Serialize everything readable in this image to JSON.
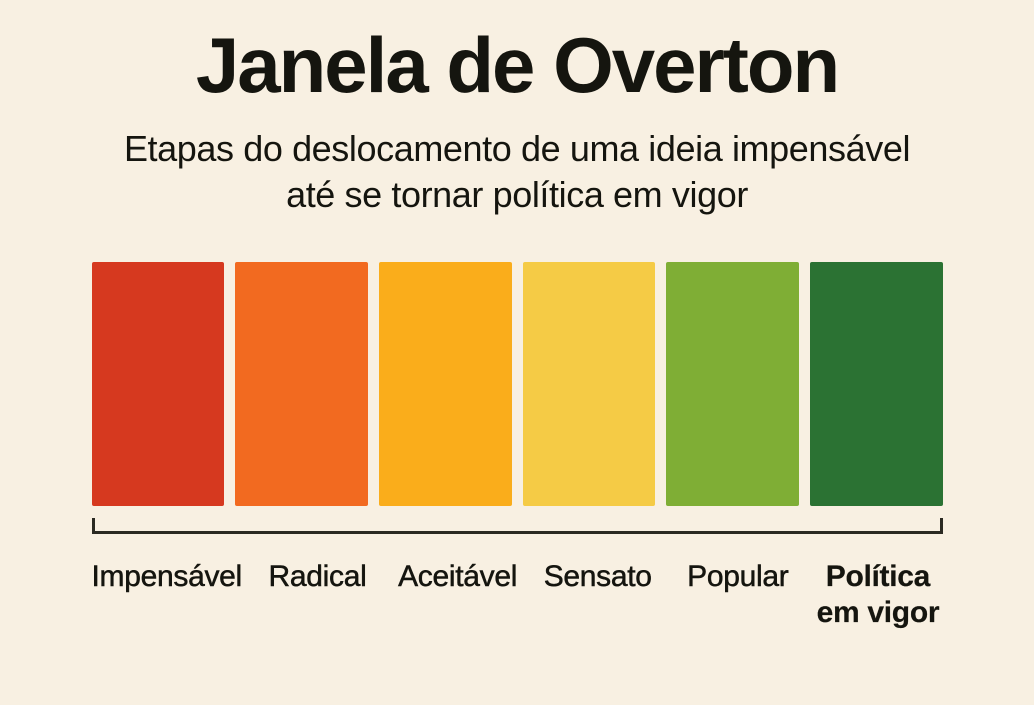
{
  "title": "Janela de Overton",
  "subtitle": {
    "line1": "Etapas do deslocamento de uma ideia impensável",
    "line2": "até se tornar política em vigor"
  },
  "stages": [
    {
      "label": "Impensável",
      "color": "#D6391F",
      "emphasis": false
    },
    {
      "label": "Radical",
      "color": "#F26A20",
      "emphasis": false
    },
    {
      "label": "Aceitável",
      "color": "#FAAD1B",
      "emphasis": false
    },
    {
      "label": "Sensato",
      "color": "#F5CB45",
      "emphasis": false
    },
    {
      "label": "Popular",
      "color": "#7FAE35",
      "emphasis": false
    },
    {
      "label": "Política em vigor",
      "label_lines": [
        "Política",
        "em vigor"
      ],
      "color": "#2B7233",
      "emphasis": true
    }
  ],
  "colors": {
    "background": "#F8F0E2",
    "text": "#15150F",
    "bracket": "#2B2A22"
  }
}
